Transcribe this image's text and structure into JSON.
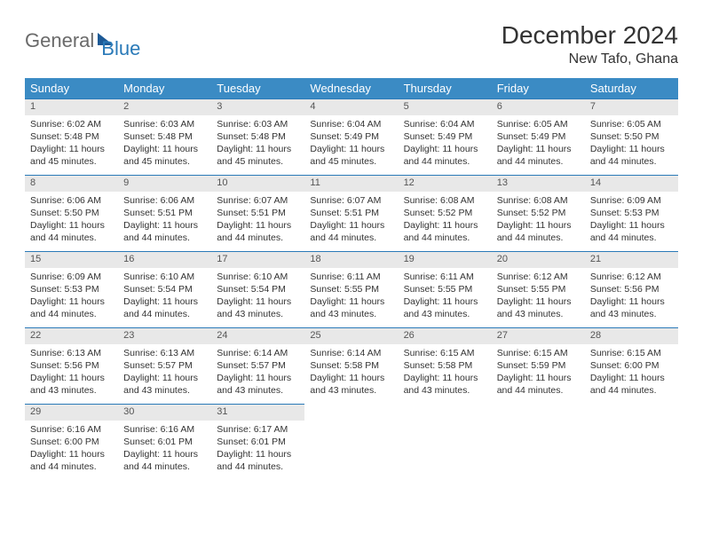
{
  "logo": {
    "part1": "General",
    "part2": "Blue"
  },
  "title": "December 2024",
  "subtitle": "New Tafo, Ghana",
  "colors": {
    "header_bg": "#3b8bc4",
    "row_border": "#2a7ab8",
    "daynum_bg": "#e8e8e8",
    "logo_gray": "#6a6a6a",
    "logo_blue": "#2a7ab8"
  },
  "weekdays": [
    "Sunday",
    "Monday",
    "Tuesday",
    "Wednesday",
    "Thursday",
    "Friday",
    "Saturday"
  ],
  "weeks": [
    [
      {
        "n": "1",
        "sr": "6:02 AM",
        "ss": "5:48 PM",
        "dl": "11 hours and 45 minutes."
      },
      {
        "n": "2",
        "sr": "6:03 AM",
        "ss": "5:48 PM",
        "dl": "11 hours and 45 minutes."
      },
      {
        "n": "3",
        "sr": "6:03 AM",
        "ss": "5:48 PM",
        "dl": "11 hours and 45 minutes."
      },
      {
        "n": "4",
        "sr": "6:04 AM",
        "ss": "5:49 PM",
        "dl": "11 hours and 45 minutes."
      },
      {
        "n": "5",
        "sr": "6:04 AM",
        "ss": "5:49 PM",
        "dl": "11 hours and 44 minutes."
      },
      {
        "n": "6",
        "sr": "6:05 AM",
        "ss": "5:49 PM",
        "dl": "11 hours and 44 minutes."
      },
      {
        "n": "7",
        "sr": "6:05 AM",
        "ss": "5:50 PM",
        "dl": "11 hours and 44 minutes."
      }
    ],
    [
      {
        "n": "8",
        "sr": "6:06 AM",
        "ss": "5:50 PM",
        "dl": "11 hours and 44 minutes."
      },
      {
        "n": "9",
        "sr": "6:06 AM",
        "ss": "5:51 PM",
        "dl": "11 hours and 44 minutes."
      },
      {
        "n": "10",
        "sr": "6:07 AM",
        "ss": "5:51 PM",
        "dl": "11 hours and 44 minutes."
      },
      {
        "n": "11",
        "sr": "6:07 AM",
        "ss": "5:51 PM",
        "dl": "11 hours and 44 minutes."
      },
      {
        "n": "12",
        "sr": "6:08 AM",
        "ss": "5:52 PM",
        "dl": "11 hours and 44 minutes."
      },
      {
        "n": "13",
        "sr": "6:08 AM",
        "ss": "5:52 PM",
        "dl": "11 hours and 44 minutes."
      },
      {
        "n": "14",
        "sr": "6:09 AM",
        "ss": "5:53 PM",
        "dl": "11 hours and 44 minutes."
      }
    ],
    [
      {
        "n": "15",
        "sr": "6:09 AM",
        "ss": "5:53 PM",
        "dl": "11 hours and 44 minutes."
      },
      {
        "n": "16",
        "sr": "6:10 AM",
        "ss": "5:54 PM",
        "dl": "11 hours and 44 minutes."
      },
      {
        "n": "17",
        "sr": "6:10 AM",
        "ss": "5:54 PM",
        "dl": "11 hours and 43 minutes."
      },
      {
        "n": "18",
        "sr": "6:11 AM",
        "ss": "5:55 PM",
        "dl": "11 hours and 43 minutes."
      },
      {
        "n": "19",
        "sr": "6:11 AM",
        "ss": "5:55 PM",
        "dl": "11 hours and 43 minutes."
      },
      {
        "n": "20",
        "sr": "6:12 AM",
        "ss": "5:55 PM",
        "dl": "11 hours and 43 minutes."
      },
      {
        "n": "21",
        "sr": "6:12 AM",
        "ss": "5:56 PM",
        "dl": "11 hours and 43 minutes."
      }
    ],
    [
      {
        "n": "22",
        "sr": "6:13 AM",
        "ss": "5:56 PM",
        "dl": "11 hours and 43 minutes."
      },
      {
        "n": "23",
        "sr": "6:13 AM",
        "ss": "5:57 PM",
        "dl": "11 hours and 43 minutes."
      },
      {
        "n": "24",
        "sr": "6:14 AM",
        "ss": "5:57 PM",
        "dl": "11 hours and 43 minutes."
      },
      {
        "n": "25",
        "sr": "6:14 AM",
        "ss": "5:58 PM",
        "dl": "11 hours and 43 minutes."
      },
      {
        "n": "26",
        "sr": "6:15 AM",
        "ss": "5:58 PM",
        "dl": "11 hours and 43 minutes."
      },
      {
        "n": "27",
        "sr": "6:15 AM",
        "ss": "5:59 PM",
        "dl": "11 hours and 44 minutes."
      },
      {
        "n": "28",
        "sr": "6:15 AM",
        "ss": "6:00 PM",
        "dl": "11 hours and 44 minutes."
      }
    ],
    [
      {
        "n": "29",
        "sr": "6:16 AM",
        "ss": "6:00 PM",
        "dl": "11 hours and 44 minutes."
      },
      {
        "n": "30",
        "sr": "6:16 AM",
        "ss": "6:01 PM",
        "dl": "11 hours and 44 minutes."
      },
      {
        "n": "31",
        "sr": "6:17 AM",
        "ss": "6:01 PM",
        "dl": "11 hours and 44 minutes."
      },
      null,
      null,
      null,
      null
    ]
  ],
  "labels": {
    "sunrise": "Sunrise:",
    "sunset": "Sunset:",
    "daylight": "Daylight:"
  }
}
